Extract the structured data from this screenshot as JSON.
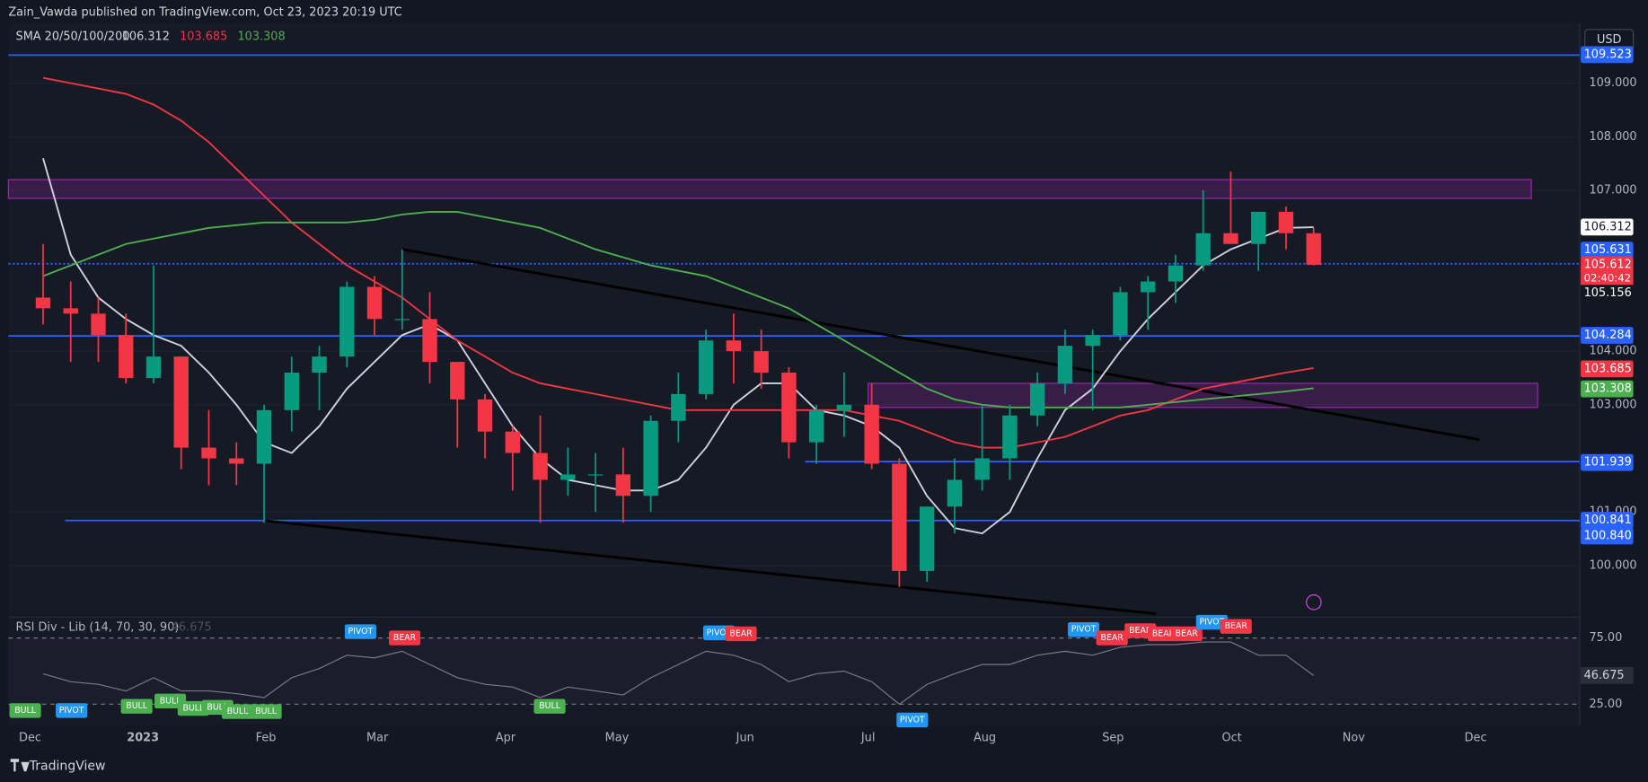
{
  "header": {
    "author_line": "Zain_Vawda published on TradingView.com, Oct 23, 2023 20:19 UTC",
    "currency": "USD",
    "brand": "TradingView"
  },
  "chart_data": {
    "type": "candlestick",
    "indicator_label": "SMA 20/50/100/200",
    "ylim": [
      99.08,
      110.12
    ],
    "yticks": [
      {
        "value": 100,
        "label": "100.000"
      },
      {
        "value": 101,
        "label": "101.000"
      },
      {
        "value": 103,
        "label": "103.000"
      },
      {
        "value": 104,
        "label": "104.000"
      },
      {
        "value": 107,
        "label": "107.000"
      },
      {
        "value": 108,
        "label": "108.000"
      },
      {
        "value": 109,
        "label": "109.000"
      }
    ],
    "xtick_labels": [
      "Dec",
      "2023",
      "Feb",
      "Mar",
      "Apr",
      "May",
      "Jun",
      "Jul",
      "Aug",
      "Sep",
      "Oct",
      "Nov",
      "Dec"
    ],
    "up_color": "#089981",
    "down_color": "#f23645",
    "open": [
      105.0,
      104.8,
      104.7,
      104.3,
      103.5,
      103.9,
      102.2,
      102.0,
      101.9,
      102.9,
      103.6,
      103.9,
      105.2,
      104.6,
      104.6,
      103.8,
      103.1,
      102.5,
      102.1,
      101.6,
      101.7,
      101.7,
      101.3,
      102.7,
      103.2,
      104.2,
      104.0,
      103.6,
      102.3,
      102.9,
      103.0,
      101.9,
      99.9,
      101.1,
      101.6,
      102.0,
      102.8,
      103.4,
      104.1,
      104.3,
      105.1,
      105.3,
      105.6,
      106.2,
      106.0,
      106.6,
      106.2
    ],
    "high": [
      106.0,
      105.3,
      105.0,
      104.7,
      105.6,
      103.9,
      102.9,
      102.3,
      103.0,
      103.9,
      104.1,
      105.3,
      105.4,
      105.9,
      105.1,
      103.8,
      103.2,
      102.6,
      102.8,
      102.2,
      102.1,
      102.2,
      102.8,
      103.6,
      104.4,
      104.7,
      104.4,
      103.7,
      103.0,
      103.6,
      103.4,
      102.0,
      101.1,
      102.0,
      103.0,
      103.0,
      103.6,
      104.4,
      104.4,
      105.2,
      105.4,
      105.8,
      107.0,
      107.35,
      106.6,
      106.7,
      106.3
    ],
    "low": [
      104.5,
      103.8,
      103.8,
      103.4,
      103.4,
      101.8,
      101.5,
      101.5,
      100.8,
      102.5,
      102.9,
      103.7,
      104.3,
      104.4,
      103.4,
      102.2,
      102.0,
      101.4,
      100.8,
      101.3,
      101.0,
      100.8,
      101.0,
      102.3,
      103.1,
      103.4,
      103.3,
      102.0,
      101.9,
      102.4,
      101.8,
      99.6,
      99.7,
      100.6,
      101.4,
      101.6,
      102.6,
      103.2,
      102.9,
      104.2,
      104.4,
      104.9,
      105.5,
      106.0,
      105.5,
      105.9,
      105.6
    ],
    "close": [
      104.8,
      104.7,
      104.3,
      103.5,
      103.9,
      102.2,
      102.0,
      101.9,
      102.9,
      103.6,
      103.9,
      105.2,
      104.6,
      104.6,
      103.8,
      103.1,
      102.5,
      102.1,
      101.6,
      101.7,
      101.7,
      101.3,
      102.7,
      103.2,
      104.2,
      104.0,
      103.6,
      102.3,
      102.9,
      103.0,
      101.9,
      99.9,
      101.1,
      101.6,
      102.0,
      102.8,
      103.4,
      104.1,
      104.3,
      105.1,
      105.3,
      105.6,
      106.2,
      106.0,
      106.6,
      106.2,
      105.612
    ],
    "series": [
      {
        "name": "106.312",
        "color": "#d1d4dc",
        "values": [
          107.6,
          105.8,
          105.0,
          104.6,
          104.3,
          104.1,
          103.6,
          103.0,
          102.3,
          102.1,
          102.6,
          103.3,
          103.8,
          104.3,
          104.5,
          104.2,
          103.4,
          102.6,
          102.0,
          101.6,
          101.5,
          101.4,
          101.4,
          101.6,
          102.2,
          103.0,
          103.4,
          103.4,
          102.9,
          102.8,
          102.6,
          102.2,
          101.3,
          100.7,
          100.6,
          101.0,
          102.0,
          102.9,
          103.3,
          104.0,
          104.6,
          105.1,
          105.6,
          105.9,
          106.1,
          106.3,
          106.312
        ]
      },
      {
        "name": "103.685",
        "color": "#f23645",
        "values": [
          109.1,
          109.0,
          108.9,
          108.8,
          108.6,
          108.3,
          107.9,
          107.4,
          106.9,
          106.4,
          106.0,
          105.6,
          105.3,
          105.0,
          104.6,
          104.2,
          103.9,
          103.6,
          103.4,
          103.3,
          103.2,
          103.1,
          103.0,
          102.9,
          102.9,
          102.9,
          102.9,
          102.9,
          102.9,
          102.9,
          102.8,
          102.7,
          102.5,
          102.3,
          102.2,
          102.2,
          102.3,
          102.4,
          102.6,
          102.8,
          102.9,
          103.1,
          103.3,
          103.4,
          103.5,
          103.6,
          103.685
        ]
      },
      {
        "name": "103.308",
        "color": "#4caf50",
        "values": [
          105.4,
          105.6,
          105.8,
          106.0,
          106.1,
          106.2,
          106.3,
          106.35,
          106.4,
          106.4,
          106.4,
          106.4,
          106.45,
          106.55,
          106.6,
          106.6,
          106.5,
          106.4,
          106.3,
          106.1,
          105.9,
          105.75,
          105.6,
          105.5,
          105.4,
          105.2,
          105.0,
          104.8,
          104.5,
          104.2,
          103.9,
          103.6,
          103.3,
          103.1,
          103.0,
          102.95,
          102.95,
          102.95,
          102.95,
          102.95,
          103.0,
          103.05,
          103.1,
          103.15,
          103.2,
          103.25,
          103.308
        ]
      }
    ],
    "hlines": [
      109.523,
      105.631,
      104.284,
      101.939,
      100.841
    ],
    "hline_color": "#2962ff",
    "zones": [
      [
        106.85,
        107.2
      ],
      [
        102.95,
        103.4
      ]
    ],
    "zone_color": "#9c27b0",
    "trendlines": [
      {
        "x": [
          13,
          52
        ],
        "y": [
          105.9,
          102.35
        ]
      },
      {
        "x": [
          8,
          40.3
        ],
        "y": [
          100.84,
          99.1
        ]
      }
    ],
    "price_labels": [
      109.523,
      106.312,
      105.631,
      105.612,
      105.156,
      104.284,
      103.685,
      103.308,
      101.939,
      100.841,
      {
        "value": 100.84,
        "label": "100.840"
      }
    ],
    "price_label_colors": [
      "#2962ff",
      "#ffffff",
      "#2962ff",
      "#f23645",
      "#131722",
      "#2962ff",
      "#f23645",
      "#4caf50",
      "#2962ff",
      "#2962ff",
      "#2962ff"
    ],
    "countdown": "02:40:42"
  },
  "rsi_data": {
    "type": "line",
    "title": "RSI Div - Lib (14, 70, 30, 90)",
    "current": 46.675,
    "color": "#787b86",
    "ylim": [
      9.1,
      90.1
    ],
    "yticks": [
      {
        "value": 75,
        "label": "75.00"
      },
      {
        "value": 25,
        "label": "25.00"
      }
    ],
    "values": [
      48,
      42,
      40,
      35,
      45,
      35,
      35,
      33,
      30,
      45,
      52,
      62,
      60,
      65,
      55,
      45,
      40,
      38,
      30,
      38,
      35,
      32,
      45,
      55,
      65,
      62,
      55,
      42,
      48,
      50,
      42,
      25,
      40,
      48,
      55,
      55,
      62,
      65,
      62,
      68,
      70,
      70,
      72,
      72,
      62,
      62,
      46.675
    ],
    "signals": [
      {
        "label": "BULL",
        "color": "#4caf50"
      },
      {
        "label": "PIVOT",
        "color": "#2196f3"
      },
      {
        "label": "BULL",
        "color": "#4caf50"
      },
      {
        "label": "BULL",
        "color": "#4caf50"
      },
      {
        "label": "BULL",
        "color": "#4caf50"
      },
      {
        "label": "BULL",
        "color": "#4caf50"
      },
      {
        "label": "BULL",
        "color": "#4caf50"
      },
      {
        "label": "BULL",
        "color": "#4caf50"
      },
      {
        "label": "BULL",
        "color": "#4caf50"
      },
      {
        "label": "PIVOT",
        "color": "#2196f3"
      },
      {
        "label": "BEAR",
        "color": "#f23645"
      },
      {
        "label": "PIVOT",
        "color": "#2196f3"
      },
      {
        "label": "BEAR",
        "color": "#f23645"
      },
      {
        "label": "PIVOT",
        "color": "#2196f3"
      },
      {
        "label": "PIVOT",
        "color": "#2196f3"
      },
      {
        "label": "BEAR",
        "color": "#f23645"
      },
      {
        "label": "BEAR",
        "color": "#f23645"
      },
      {
        "label": "BEAR",
        "color": "#f23645"
      },
      {
        "label": "BEAR",
        "color": "#f23645"
      },
      {
        "label": "PIVOT",
        "color": "#2196f3"
      },
      {
        "label": "BEAR",
        "color": "#f23645"
      }
    ]
  }
}
